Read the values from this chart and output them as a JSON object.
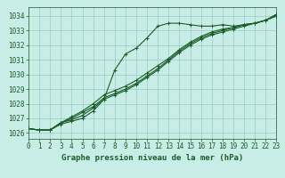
{
  "title": "Graphe pression niveau de la mer (hPa)",
  "bg_color": "#c8ece6",
  "line_color": "#1a5c28",
  "grid_color": "#96ccc2",
  "ylim": [
    1025.6,
    1034.6
  ],
  "xlim": [
    0,
    23
  ],
  "yticks": [
    1026,
    1027,
    1028,
    1029,
    1030,
    1031,
    1032,
    1033,
    1034
  ],
  "xticks": [
    0,
    1,
    2,
    3,
    4,
    5,
    6,
    7,
    8,
    9,
    10,
    11,
    12,
    13,
    14,
    15,
    16,
    17,
    18,
    19,
    20,
    21,
    22,
    23
  ],
  "series": [
    [
      1026.3,
      1026.2,
      1026.2,
      1026.6,
      1026.8,
      1027.0,
      1027.5,
      1028.3,
      1030.3,
      1031.4,
      1031.8,
      1032.5,
      1033.3,
      1033.5,
      1033.5,
      1033.4,
      1033.3,
      1033.3,
      1033.4,
      1033.3,
      1033.4,
      1033.5,
      1033.7,
      1034.1
    ],
    [
      1026.3,
      1026.2,
      1026.2,
      1026.7,
      1026.9,
      1027.2,
      1027.7,
      1028.3,
      1028.6,
      1028.9,
      1029.3,
      1029.8,
      1030.3,
      1030.9,
      1031.5,
      1032.0,
      1032.4,
      1032.7,
      1032.9,
      1033.1,
      1033.3,
      1033.5,
      1033.7,
      1034.1
    ],
    [
      1026.3,
      1026.2,
      1026.2,
      1026.7,
      1027.0,
      1027.4,
      1027.8,
      1028.4,
      1028.7,
      1029.0,
      1029.4,
      1029.9,
      1030.4,
      1031.0,
      1031.6,
      1032.1,
      1032.5,
      1032.8,
      1033.0,
      1033.2,
      1033.4,
      1033.5,
      1033.7,
      1034.0
    ],
    [
      1026.3,
      1026.2,
      1026.2,
      1026.7,
      1027.1,
      1027.5,
      1028.0,
      1028.6,
      1028.9,
      1029.2,
      1029.6,
      1030.1,
      1030.6,
      1031.1,
      1031.7,
      1032.2,
      1032.6,
      1032.9,
      1033.1,
      1033.2,
      1033.4,
      1033.5,
      1033.7,
      1034.0
    ]
  ],
  "tick_fontsize": 5.5,
  "title_fontsize": 6.5,
  "linewidth": 0.8,
  "markersize": 3.0,
  "markeredgewidth": 0.7
}
